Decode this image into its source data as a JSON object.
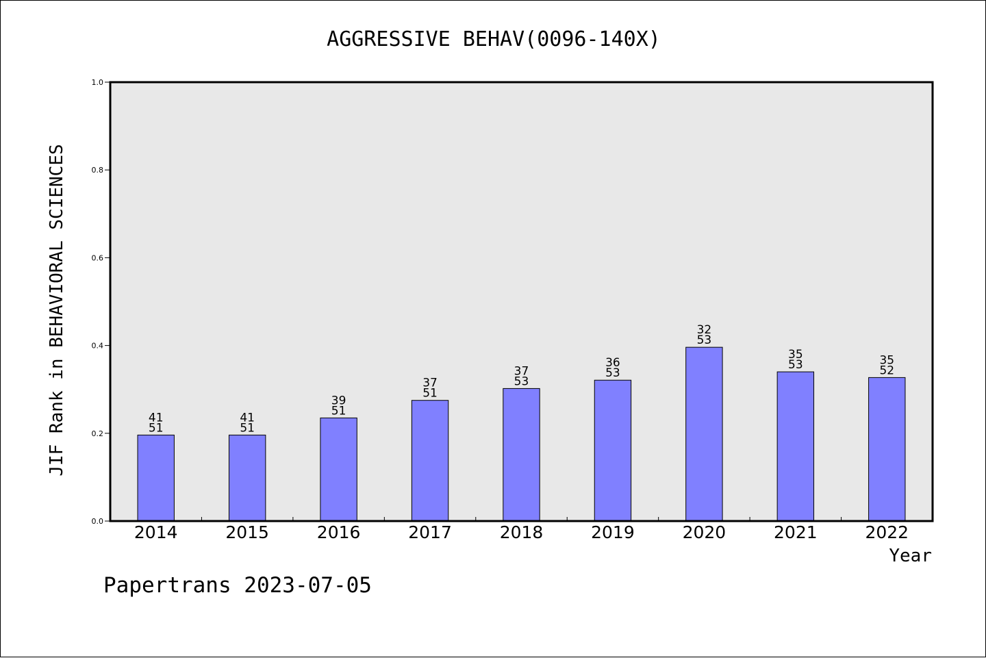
{
  "chart_data": {
    "type": "bar",
    "title": "AGGRESSIVE BEHAV(0096-140X)",
    "xlabel": "Year",
    "ylabel": "JIF Rank in BEHAVIORAL SCIENCES",
    "ylim": [
      0,
      1
    ],
    "yticks": [
      "0.0",
      "0.2",
      "0.4",
      "0.6",
      "0.8",
      "1.0"
    ],
    "categories": [
      "2014",
      "2015",
      "2016",
      "2017",
      "2018",
      "2019",
      "2020",
      "2021",
      "2022"
    ],
    "values": [
      0.196,
      0.196,
      0.235,
      0.275,
      0.302,
      0.321,
      0.396,
      0.34,
      0.327
    ],
    "rank_labels": [
      {
        "rank": "41",
        "total": "51"
      },
      {
        "rank": "41",
        "total": "51"
      },
      {
        "rank": "39",
        "total": "51"
      },
      {
        "rank": "37",
        "total": "51"
      },
      {
        "rank": "37",
        "total": "53"
      },
      {
        "rank": "36",
        "total": "53"
      },
      {
        "rank": "32",
        "total": "53"
      },
      {
        "rank": "35",
        "total": "53"
      },
      {
        "rank": "35",
        "total": "52"
      }
    ],
    "grid": false,
    "colors": {
      "bar": "#8080ff",
      "plot_bg": "#e8e8e8",
      "axis": "#000000"
    }
  },
  "footer": {
    "credit": "Papertrans 2023-07-05"
  }
}
